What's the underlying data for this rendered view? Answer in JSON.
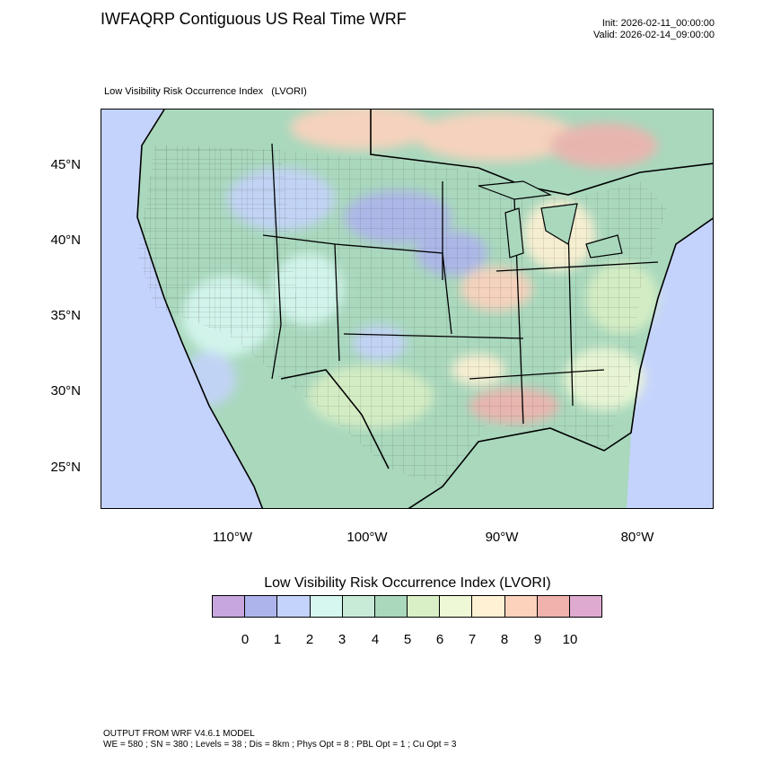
{
  "title": "IWFAQRP Contiguous US Real Time WRF",
  "init": "Init: 2026-02-11_00:00:00",
  "valid": "Valid: 2026-02-14_09:00:00",
  "subtitle": "Low Visibility Risk Occurrence Index   (LVORI)",
  "lat_labels": [
    "45°N",
    "40°N",
    "35°N",
    "30°N",
    "25°N"
  ],
  "lon_labels": [
    "110°W",
    "100°W",
    "90°W",
    "80°W"
  ],
  "colorbar": {
    "title": "Low Visibility Risk Occurrence Index  (LVORI)",
    "labels": [
      "0",
      "1",
      "2",
      "3",
      "4",
      "5",
      "6",
      "7",
      "8",
      "9",
      "10"
    ],
    "colors": [
      "#c7a6dd",
      "#adb4ec",
      "#c4d3fb",
      "#d6f7f0",
      "#c7ebd7",
      "#a9d8bd",
      "#d9efc5",
      "#eef8d6",
      "#fff1d4",
      "#fdd2bd",
      "#efb2ad",
      "#deaad0"
    ]
  },
  "footer": {
    "line1": "OUTPUT FROM WRF V4.6.1 MODEL",
    "line2": "WE = 580 ; SN = 380 ; Levels = 38 ; Dis = 8km ; Phys Opt = 8 ; PBL Opt = 1 ; Cu Opt = 3"
  }
}
